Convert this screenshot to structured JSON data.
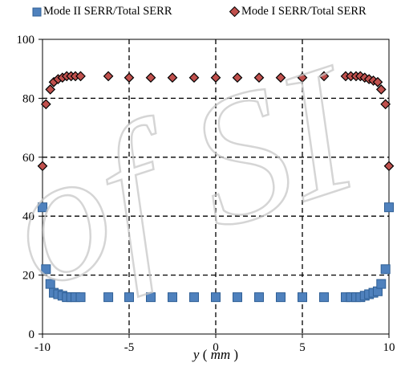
{
  "chart_data": {
    "type": "scatter",
    "title": "",
    "xlabel": "y",
    "xlabel_unit": "mm",
    "ylabel": "",
    "xlim": [
      -10,
      10
    ],
    "ylim": [
      0,
      100
    ],
    "xticks": [
      -10,
      -5,
      0,
      5,
      10
    ],
    "yticks": [
      0,
      20,
      40,
      60,
      80,
      100
    ],
    "grid": "dashed",
    "legend_position": "top",
    "series": [
      {
        "name": "Mode II SERR/Total SERR",
        "marker": "square",
        "color": "#4f81bd",
        "x": [
          -10.0,
          -9.8,
          -9.55,
          -9.35,
          -9.1,
          -8.85,
          -8.6,
          -8.35,
          -8.1,
          -7.8,
          -6.2,
          -5.0,
          -3.75,
          -2.5,
          -1.25,
          0.0,
          1.25,
          2.5,
          3.75,
          5.0,
          6.25,
          7.5,
          7.8,
          8.1,
          8.35,
          8.6,
          8.85,
          9.1,
          9.35,
          9.55,
          9.8,
          10.0
        ],
        "y": [
          43,
          22,
          17,
          14,
          13.5,
          13,
          12.5,
          12.5,
          12.5,
          12.5,
          12.5,
          12.5,
          12.5,
          12.5,
          12.5,
          12.5,
          12.5,
          12.5,
          12.5,
          12.5,
          12.5,
          12.5,
          12.5,
          12.5,
          12.5,
          13,
          13.5,
          14,
          14.5,
          17,
          22,
          43
        ]
      },
      {
        "name": "Mode I SERR/Total SERR",
        "marker": "diamond",
        "color": "#c0504d",
        "x": [
          -10.0,
          -9.8,
          -9.55,
          -9.35,
          -9.1,
          -8.85,
          -8.6,
          -8.35,
          -8.1,
          -7.8,
          -6.2,
          -5.0,
          -3.75,
          -2.5,
          -1.25,
          0.0,
          1.25,
          2.5,
          3.75,
          5.0,
          6.25,
          7.5,
          7.8,
          8.1,
          8.35,
          8.6,
          8.85,
          9.1,
          9.35,
          9.55,
          9.8,
          10.0
        ],
        "y": [
          57,
          78,
          83,
          85.5,
          86.5,
          87,
          87.5,
          87.5,
          87.5,
          87.5,
          87.5,
          87,
          87,
          87,
          87,
          87,
          87,
          87,
          87,
          87,
          87.5,
          87.5,
          87.5,
          87.5,
          87.5,
          87,
          86.5,
          86,
          85.5,
          83,
          78,
          57
        ]
      }
    ]
  },
  "watermark": {
    "text": "of SI",
    "color": "#c7c7c7"
  }
}
